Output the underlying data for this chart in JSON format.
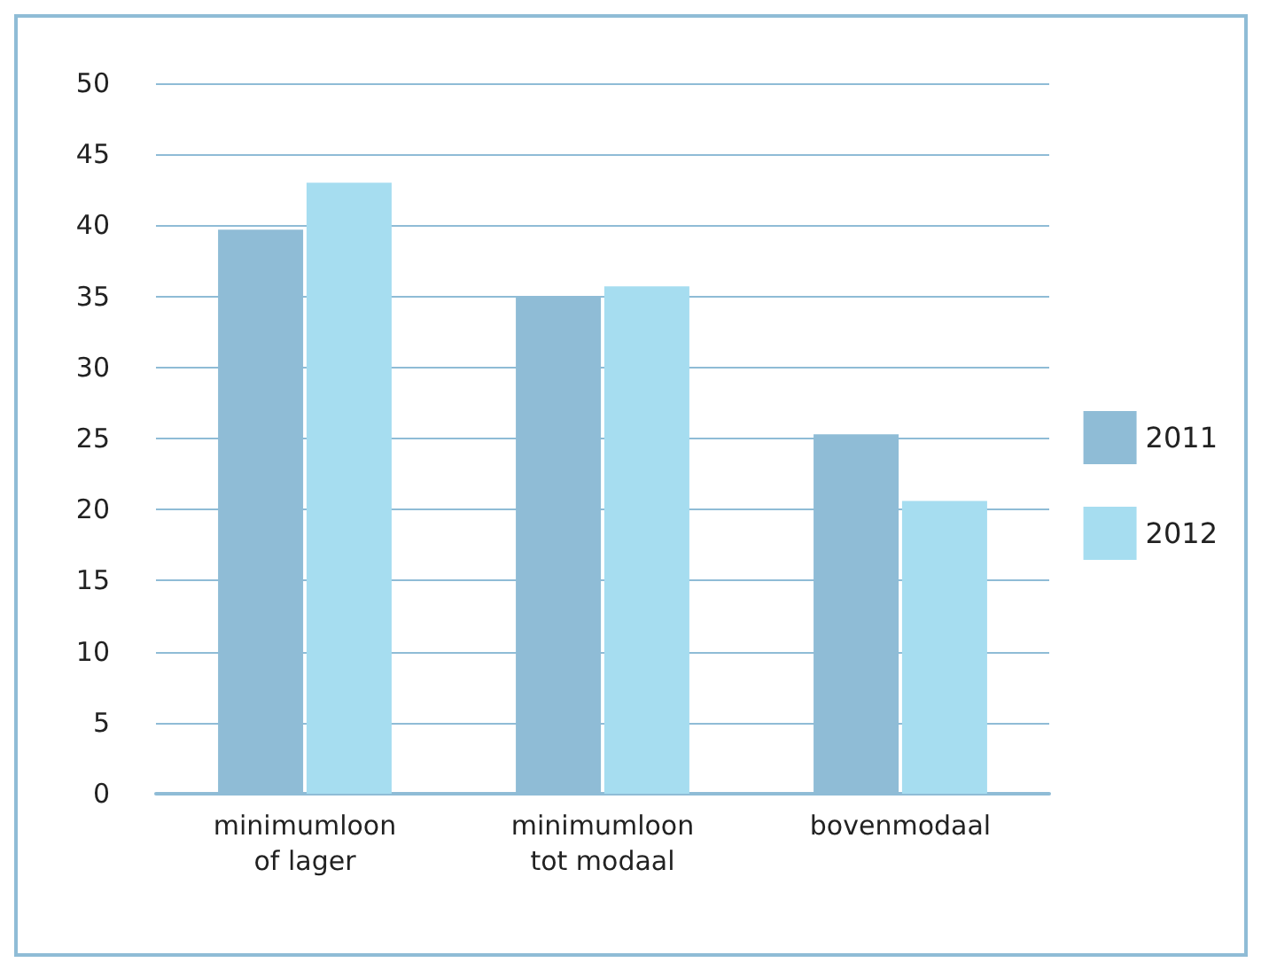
{
  "chart_data": {
    "type": "bar",
    "categories": [
      "minimumloon\nof lager",
      "minimumloon\ntot modaal",
      "bovenmodaal"
    ],
    "series": [
      {
        "name": "2011",
        "color": "#8fbcd6",
        "values": [
          39.7,
          35.0,
          25.3
        ]
      },
      {
        "name": "2012",
        "color": "#a6ddf0",
        "values": [
          43.0,
          35.7,
          20.6
        ]
      }
    ],
    "ylim": [
      0,
      50
    ],
    "yticks": [
      0,
      5,
      10,
      15,
      20,
      25,
      30,
      35,
      40,
      45,
      50
    ],
    "grid": "y",
    "legend": "right"
  }
}
